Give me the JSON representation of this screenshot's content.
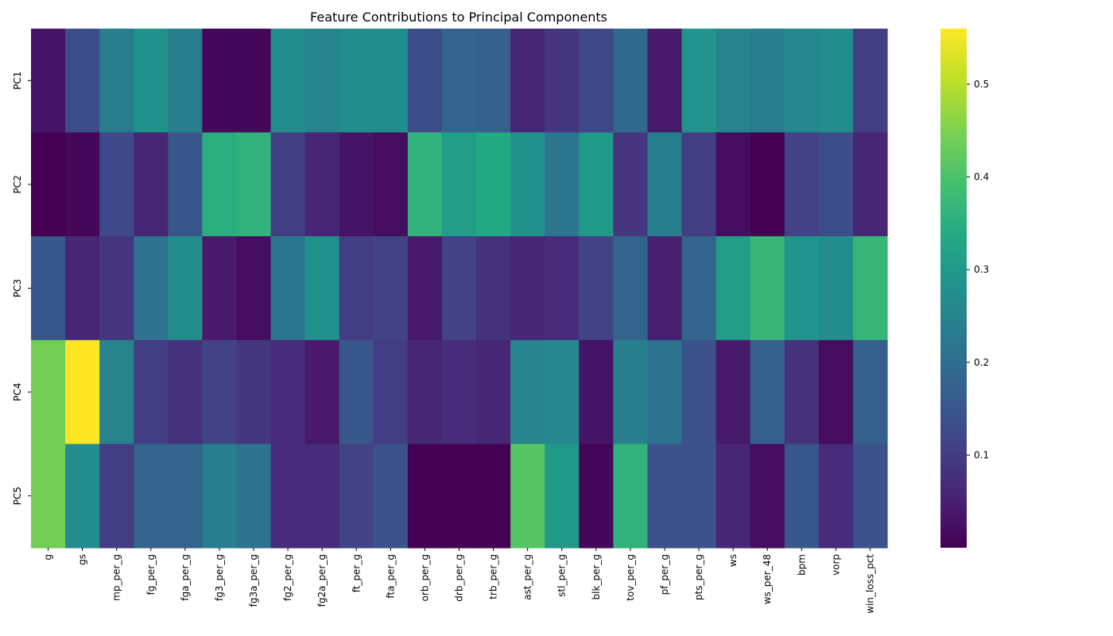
{
  "chart_data": {
    "type": "heatmap",
    "title": "Feature Contributions to Principal Components",
    "rows": [
      "PC1",
      "PC2",
      "PC3",
      "PC4",
      "PC5"
    ],
    "columns": [
      "g",
      "gs",
      "mp_per_g",
      "fg_per_g",
      "fga_per_g",
      "fg3_per_g",
      "fg3a_per_g",
      "fg2_per_g",
      "fg2a_per_g",
      "ft_per_g",
      "fta_per_g",
      "orb_per_g",
      "drb_per_g",
      "trb_per_g",
      "ast_per_g",
      "stl_per_g",
      "blk_per_g",
      "tov_per_g",
      "pf_per_g",
      "pts_per_g",
      "ws",
      "ws_per_48",
      "bpm",
      "vorp",
      "win_loss_pct"
    ],
    "values": [
      [
        0.03,
        0.13,
        0.23,
        0.28,
        0.24,
        0.01,
        0.01,
        0.27,
        0.25,
        0.27,
        0.27,
        0.13,
        0.18,
        0.17,
        0.06,
        0.09,
        0.12,
        0.19,
        0.04,
        0.29,
        0.25,
        0.23,
        0.26,
        0.27,
        0.1
      ],
      [
        0.0,
        0.01,
        0.12,
        0.06,
        0.15,
        0.35,
        0.36,
        0.1,
        0.06,
        0.03,
        0.02,
        0.36,
        0.31,
        0.34,
        0.28,
        0.22,
        0.3,
        0.09,
        0.24,
        0.1,
        0.02,
        0.0,
        0.11,
        0.13,
        0.06
      ],
      [
        0.15,
        0.06,
        0.09,
        0.21,
        0.27,
        0.04,
        0.02,
        0.22,
        0.28,
        0.1,
        0.11,
        0.04,
        0.11,
        0.08,
        0.06,
        0.07,
        0.11,
        0.18,
        0.05,
        0.18,
        0.31,
        0.37,
        0.29,
        0.27,
        0.37
      ],
      [
        0.44,
        0.56,
        0.25,
        0.1,
        0.08,
        0.11,
        0.09,
        0.07,
        0.04,
        0.15,
        0.1,
        0.06,
        0.07,
        0.06,
        0.25,
        0.26,
        0.03,
        0.24,
        0.21,
        0.14,
        0.04,
        0.17,
        0.08,
        0.02,
        0.17
      ],
      [
        0.44,
        0.27,
        0.1,
        0.18,
        0.18,
        0.24,
        0.21,
        0.07,
        0.07,
        0.11,
        0.14,
        0.0,
        0.0,
        0.0,
        0.41,
        0.3,
        0.01,
        0.36,
        0.14,
        0.14,
        0.06,
        0.02,
        0.15,
        0.07,
        0.14
      ]
    ],
    "vmin": 0.0,
    "vmax": 0.56,
    "colormap": "viridis",
    "colorbar_ticks": [
      "0.1",
      "0.2",
      "0.3",
      "0.4",
      "0.5"
    ],
    "colorbar_tick_values": [
      0.1,
      0.2,
      0.3,
      0.4,
      0.5
    ],
    "xlabel": "",
    "ylabel": "",
    "grid": false
  }
}
